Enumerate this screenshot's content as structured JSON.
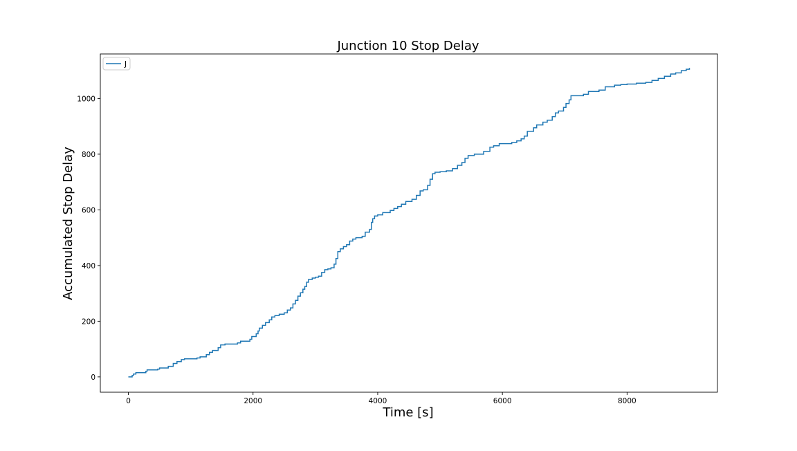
{
  "chart_data": {
    "type": "line",
    "title": "Junction 10 Stop Delay",
    "xlabel": "Time [s]",
    "ylabel": "Accumulated Stop Delay",
    "xlim": [
      -450,
      9450
    ],
    "ylim": [
      -55,
      1160
    ],
    "x_ticks": [
      0,
      2000,
      4000,
      6000,
      8000
    ],
    "y_ticks": [
      0,
      200,
      400,
      600,
      800,
      1000
    ],
    "grid": false,
    "legend_position": "upper-left",
    "series": [
      {
        "name": "J",
        "color": "#1f77b4",
        "step": true,
        "points": [
          [
            0,
            0
          ],
          [
            60,
            5
          ],
          [
            80,
            10
          ],
          [
            120,
            15
          ],
          [
            280,
            20
          ],
          [
            300,
            25
          ],
          [
            470,
            28
          ],
          [
            500,
            32
          ],
          [
            640,
            38
          ],
          [
            720,
            48
          ],
          [
            780,
            55
          ],
          [
            850,
            62
          ],
          [
            900,
            65
          ],
          [
            1100,
            68
          ],
          [
            1150,
            72
          ],
          [
            1250,
            80
          ],
          [
            1300,
            88
          ],
          [
            1350,
            95
          ],
          [
            1440,
            105
          ],
          [
            1480,
            115
          ],
          [
            1550,
            118
          ],
          [
            1750,
            122
          ],
          [
            1800,
            128
          ],
          [
            1950,
            135
          ],
          [
            1980,
            145
          ],
          [
            2050,
            155
          ],
          [
            2080,
            165
          ],
          [
            2100,
            175
          ],
          [
            2150,
            185
          ],
          [
            2200,
            195
          ],
          [
            2260,
            205
          ],
          [
            2300,
            215
          ],
          [
            2350,
            220
          ],
          [
            2420,
            225
          ],
          [
            2500,
            230
          ],
          [
            2550,
            240
          ],
          [
            2600,
            248
          ],
          [
            2640,
            262
          ],
          [
            2680,
            275
          ],
          [
            2720,
            290
          ],
          [
            2760,
            302
          ],
          [
            2800,
            315
          ],
          [
            2830,
            325
          ],
          [
            2860,
            340
          ],
          [
            2890,
            350
          ],
          [
            2950,
            355
          ],
          [
            3000,
            358
          ],
          [
            3050,
            362
          ],
          [
            3100,
            375
          ],
          [
            3150,
            385
          ],
          [
            3200,
            388
          ],
          [
            3250,
            392
          ],
          [
            3300,
            405
          ],
          [
            3330,
            425
          ],
          [
            3360,
            450
          ],
          [
            3400,
            460
          ],
          [
            3450,
            468
          ],
          [
            3500,
            475
          ],
          [
            3550,
            488
          ],
          [
            3600,
            495
          ],
          [
            3650,
            500
          ],
          [
            3750,
            505
          ],
          [
            3800,
            520
          ],
          [
            3870,
            530
          ],
          [
            3900,
            555
          ],
          [
            3920,
            568
          ],
          [
            3950,
            578
          ],
          [
            4000,
            582
          ],
          [
            4080,
            590
          ],
          [
            4200,
            598
          ],
          [
            4260,
            605
          ],
          [
            4320,
            612
          ],
          [
            4380,
            620
          ],
          [
            4450,
            630
          ],
          [
            4550,
            638
          ],
          [
            4620,
            652
          ],
          [
            4680,
            668
          ],
          [
            4730,
            672
          ],
          [
            4800,
            688
          ],
          [
            4840,
            710
          ],
          [
            4880,
            730
          ],
          [
            4920,
            735
          ],
          [
            5000,
            737
          ],
          [
            5100,
            740
          ],
          [
            5200,
            748
          ],
          [
            5280,
            760
          ],
          [
            5350,
            770
          ],
          [
            5400,
            785
          ],
          [
            5450,
            795
          ],
          [
            5550,
            800
          ],
          [
            5700,
            810
          ],
          [
            5800,
            825
          ],
          [
            5860,
            830
          ],
          [
            5950,
            838
          ],
          [
            6150,
            842
          ],
          [
            6230,
            848
          ],
          [
            6300,
            855
          ],
          [
            6350,
            865
          ],
          [
            6400,
            882
          ],
          [
            6500,
            895
          ],
          [
            6550,
            905
          ],
          [
            6650,
            915
          ],
          [
            6720,
            922
          ],
          [
            6800,
            935
          ],
          [
            6850,
            948
          ],
          [
            6900,
            955
          ],
          [
            6980,
            968
          ],
          [
            7020,
            982
          ],
          [
            7070,
            995
          ],
          [
            7100,
            1010
          ],
          [
            7300,
            1015
          ],
          [
            7380,
            1025
          ],
          [
            7550,
            1030
          ],
          [
            7650,
            1042
          ],
          [
            7800,
            1048
          ],
          [
            7900,
            1050
          ],
          [
            8000,
            1052
          ],
          [
            8150,
            1055
          ],
          [
            8300,
            1058
          ],
          [
            8400,
            1065
          ],
          [
            8500,
            1072
          ],
          [
            8600,
            1080
          ],
          [
            8700,
            1088
          ],
          [
            8780,
            1092
          ],
          [
            8870,
            1100
          ],
          [
            8950,
            1105
          ],
          [
            9000,
            1110
          ]
        ]
      }
    ]
  }
}
